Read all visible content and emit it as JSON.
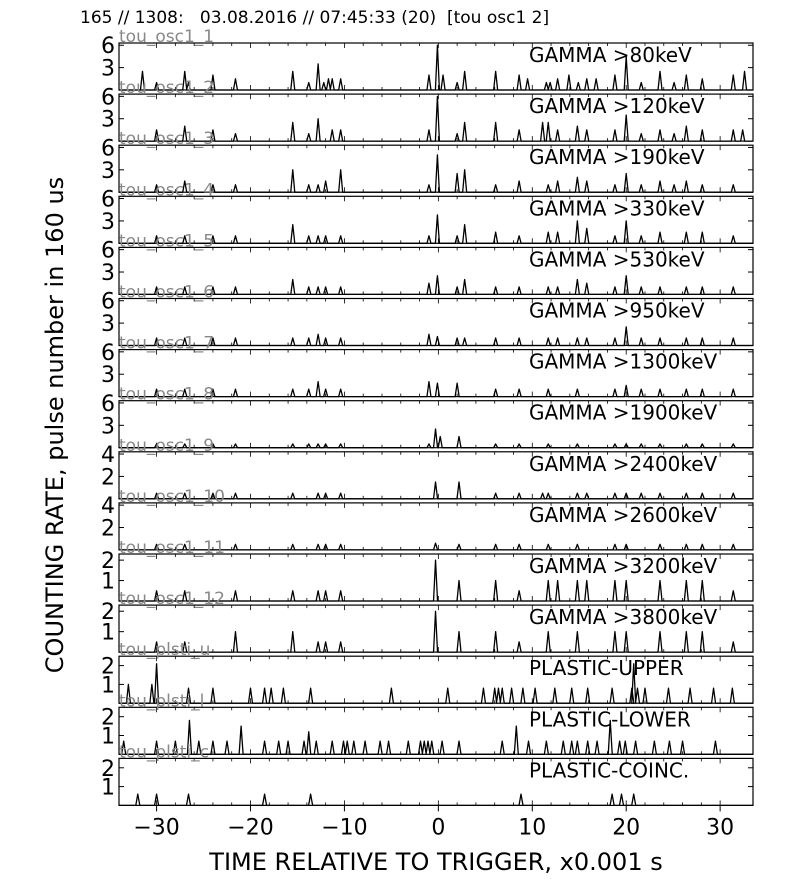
{
  "header": {
    "title": "165 // 1308:   03.08.2016 // 07:45:33 (20)  [tou osc1 2]"
  },
  "axes": {
    "ylabel": "COUNTING RATE,    pulse number in 160 us",
    "xlabel": "TIME RELATIVE TO TRIGGER,   x0.001 s",
    "xlim": [
      -34,
      33.5
    ],
    "xticks": [
      -30,
      -20,
      -10,
      0,
      10,
      20,
      30
    ]
  },
  "chart_data": [
    {
      "type": "line",
      "channel": "tou_osc1_1",
      "label": "GAMMA >80keV",
      "ylim": [
        0,
        6.3
      ],
      "yticks": [
        3,
        6
      ],
      "x": [
        -31.5,
        -30,
        -27,
        -26.6,
        -24,
        -21.6,
        -15.5,
        -13.8,
        -12.8,
        -12.2,
        -11.7,
        -11.3,
        -10.4,
        -1,
        -0.1,
        0.5,
        2,
        2.8,
        6.1,
        8.6,
        9.5,
        11.5,
        11.9,
        12.7,
        13.9,
        14.9,
        15.8,
        16.8,
        18.8,
        20,
        21.6,
        23.6,
        25.1,
        26.4,
        28.1,
        31.4,
        32.6
      ],
      "y": [
        2.5,
        1,
        2.5,
        1,
        2,
        1.5,
        2.5,
        1,
        3.5,
        1,
        1.5,
        1.5,
        1.5,
        2,
        6,
        2,
        1,
        2.5,
        2.5,
        2,
        1.5,
        1,
        1,
        1.5,
        2,
        1,
        1.5,
        1.5,
        2,
        4.5,
        1,
        2.5,
        1,
        2,
        1.5,
        2,
        2.5
      ]
    },
    {
      "type": "line",
      "channel": "tou_osc1_2",
      "label": "GAMMA >120keV",
      "ylim": [
        0,
        6.3
      ],
      "yticks": [
        3,
        6
      ],
      "x": [
        -30,
        -27,
        -24,
        -21.6,
        -15.5,
        -13.8,
        -12.8,
        -11.3,
        -10.4,
        -1,
        -0.1,
        2,
        2.8,
        6.1,
        8.6,
        11.1,
        11.7,
        12.7,
        14.8,
        15.8,
        18.8,
        20,
        21.6,
        23.6,
        25.1,
        26.4,
        28.1,
        31.4,
        32.4
      ],
      "y": [
        1.5,
        2,
        1.5,
        1,
        2.5,
        1,
        3,
        1.5,
        1.5,
        1.5,
        6,
        1,
        2.5,
        2.5,
        1.5,
        2.5,
        2.5,
        1.5,
        2,
        1.5,
        1.5,
        3.5,
        1,
        1.5,
        1,
        2,
        1.5,
        1.5,
        1.5
      ]
    },
    {
      "type": "line",
      "channel": "tou_osc1_3",
      "label": "GAMMA >190keV",
      "ylim": [
        0,
        6.3
      ],
      "yticks": [
        3,
        6
      ],
      "x": [
        -30,
        -27,
        -24,
        -21.6,
        -15.5,
        -13.8,
        -12.8,
        -12,
        -10.4,
        -1,
        -0.1,
        2,
        2.8,
        6.1,
        8.6,
        11.7,
        12.7,
        14.8,
        15.8,
        18.8,
        20,
        21.6,
        23.6,
        25.1,
        26.4,
        28.1,
        31.4
      ],
      "y": [
        1,
        1.5,
        1,
        1,
        3,
        1,
        1,
        1.5,
        3,
        1,
        5,
        2.5,
        3,
        1,
        1.5,
        1,
        1.5,
        2,
        1.5,
        1,
        2.5,
        1,
        1.5,
        1,
        1.5,
        1,
        1
      ]
    },
    {
      "type": "line",
      "channel": "tou_osc1_4",
      "label": "GAMMA >330keV",
      "ylim": [
        0,
        6.3
      ],
      "yticks": [
        3,
        6
      ],
      "x": [
        -30,
        -27,
        -24,
        -21.6,
        -15.5,
        -13.8,
        -12.8,
        -12,
        -10.4,
        -1,
        -0.1,
        2,
        2.8,
        6.1,
        8.6,
        11.7,
        12.7,
        14.8,
        15.8,
        18.8,
        20,
        21.6,
        23.6,
        26.4,
        28.1,
        31.4
      ],
      "y": [
        1,
        1,
        1,
        1,
        2.5,
        1,
        1,
        1,
        1,
        1,
        3.8,
        1,
        2.5,
        1.5,
        1,
        1.5,
        1.5,
        3,
        2,
        1,
        3,
        1,
        1.5,
        1.5,
        1.5,
        1
      ]
    },
    {
      "type": "line",
      "channel": "tou_osc1_5",
      "label": "GAMMA >530keV",
      "ylim": [
        0,
        6.3
      ],
      "yticks": [
        3,
        6
      ],
      "x": [
        -30,
        -27,
        -24,
        -21.6,
        -15.5,
        -13.8,
        -12.8,
        -12,
        -10.4,
        -1,
        -0.1,
        2,
        2.8,
        6.1,
        8.6,
        11.7,
        12.7,
        14.8,
        15.8,
        18.8,
        20,
        21.6,
        23.6,
        26.4,
        28.1,
        31.4
      ],
      "y": [
        1,
        1,
        1,
        1,
        2,
        1,
        1,
        1,
        1,
        1.5,
        2.5,
        1,
        2,
        1,
        1,
        1,
        1,
        2,
        1.5,
        1,
        2.5,
        1,
        1,
        1,
        1,
        1
      ]
    },
    {
      "type": "line",
      "channel": "tou_osc1_6",
      "label": "GAMMA >950keV",
      "ylim": [
        0,
        6.3
      ],
      "yticks": [
        3,
        6
      ],
      "x": [
        -30,
        -27,
        -24,
        -21.6,
        -15.5,
        -13.8,
        -12.8,
        -12,
        -10.4,
        -1,
        -0.1,
        2,
        2.8,
        6.1,
        8.6,
        11.7,
        12.7,
        14.8,
        15.8,
        18.8,
        20,
        21.6,
        23.6,
        26.4,
        28.1,
        31.4
      ],
      "y": [
        1,
        1,
        1,
        1,
        1,
        1,
        1.5,
        1,
        1,
        1.5,
        1.2,
        1,
        1,
        1,
        1,
        1,
        1,
        1,
        1,
        1,
        2.5,
        1,
        1,
        1,
        1,
        1
      ]
    },
    {
      "type": "line",
      "channel": "tou_osc1_7",
      "label": "GAMMA >1300keV",
      "ylim": [
        0,
        6.3
      ],
      "yticks": [
        3,
        6
      ],
      "x": [
        -30,
        -27,
        -24,
        -21.6,
        -15.5,
        -13.8,
        -12.8,
        -12,
        -10.4,
        -1,
        -0.1,
        2,
        6.1,
        8.6,
        11.7,
        14.8,
        18.8,
        20,
        21.6,
        23.6,
        26.4,
        28.1,
        31.4
      ],
      "y": [
        1,
        1,
        1,
        1,
        1,
        1,
        2,
        1,
        1,
        2,
        1.8,
        1.8,
        1,
        1,
        1,
        1,
        1,
        1.5,
        1,
        1,
        1,
        1,
        1
      ]
    },
    {
      "type": "line",
      "channel": "tou_osc1_8",
      "label": "GAMMA >1900keV",
      "ylim": [
        0,
        6.3
      ],
      "yticks": [
        3,
        6
      ],
      "x": [
        -30,
        -27,
        -24,
        -21.6,
        -15.5,
        -13.8,
        -12.8,
        -12,
        -10.4,
        -1,
        -0.3,
        0.2,
        2.2,
        6.1,
        8.6,
        11.7,
        14.8,
        18.8,
        20,
        21.6,
        23.6,
        26.4,
        28.1,
        31.4
      ],
      "y": [
        0.5,
        0.5,
        0.5,
        0.5,
        0.5,
        0.5,
        0.5,
        0.5,
        0.5,
        0.5,
        2.5,
        1.5,
        1.5,
        0.5,
        0.5,
        0.5,
        0.5,
        0.5,
        0.5,
        0.5,
        0.5,
        0.5,
        0.5,
        0.5
      ]
    },
    {
      "type": "line",
      "channel": "tou_osc1_9",
      "label": "GAMMA >2400keV",
      "ylim": [
        0,
        4.2
      ],
      "yticks": [
        2,
        4
      ],
      "x": [
        -30,
        -27,
        -24,
        -21.6,
        -15.5,
        -12.8,
        -12,
        -10.4,
        -0.3,
        2.2,
        6.1,
        8.6,
        11.1,
        11.7,
        14.8,
        15.8,
        18.8,
        20,
        21.6,
        23.6,
        26.4,
        28.1,
        31.4
      ],
      "y": [
        0.5,
        0.5,
        0.5,
        0.5,
        0.5,
        0.5,
        0.5,
        0.5,
        1.5,
        1.5,
        0.5,
        0.5,
        0.5,
        0.5,
        0.5,
        0.5,
        0.5,
        0.5,
        0.5,
        0.5,
        0.5,
        0.5,
        0.5
      ]
    },
    {
      "type": "line",
      "channel": "tou_osc1_10",
      "label": "GAMMA >2600keV",
      "ylim": [
        0,
        4.2
      ],
      "yticks": [
        2,
        4
      ],
      "x": [
        -30,
        -27,
        -21.6,
        -15.5,
        -12.8,
        -12,
        -10.4,
        -0.3,
        2.2,
        6.1,
        8.6,
        11.7,
        14.8,
        18.8,
        20,
        23.6,
        26.4,
        28.1,
        31.4
      ],
      "y": [
        0.5,
        0.5,
        0.5,
        0.5,
        0.5,
        0.5,
        0.5,
        0.6,
        0.5,
        0.5,
        0.5,
        0.5,
        0.5,
        0.5,
        0.5,
        0.5,
        0.5,
        0.5,
        0.5
      ]
    },
    {
      "type": "line",
      "channel": "tou_osc1_11",
      "label": "GAMMA >3200keV",
      "ylim": [
        0,
        2.3
      ],
      "yticks": [
        1,
        2
      ],
      "x": [
        -30,
        -27,
        -21.6,
        -15.5,
        -12.8,
        -12,
        -10.4,
        -0.3,
        2.2,
        6.1,
        8.6,
        11.7,
        12.7,
        14.8,
        15.8,
        18.8,
        20,
        23.6,
        26.4,
        28.1,
        31.4
      ],
      "y": [
        0.5,
        0.5,
        0.5,
        0.5,
        0.5,
        0.5,
        0.5,
        2,
        1,
        1,
        0.5,
        1,
        1,
        1,
        1,
        1,
        1,
        1,
        1,
        1,
        0.5
      ]
    },
    {
      "type": "line",
      "channel": "tou_osc1_12",
      "label": "GAMMA >3800keV",
      "ylim": [
        0,
        2.3
      ],
      "yticks": [
        1,
        2
      ],
      "x": [
        -30,
        -27,
        -21.6,
        -15.5,
        -12.8,
        -12,
        -10.4,
        -0.3,
        2.2,
        6.1,
        8.6,
        11.7,
        14.8,
        18.8,
        20,
        23.6,
        26.4,
        28.1,
        31.4
      ],
      "y": [
        0.5,
        0.5,
        1,
        1,
        0.5,
        0.5,
        0.5,
        2,
        1,
        1,
        0.5,
        1,
        1,
        1,
        1,
        1,
        1,
        1,
        0.5
      ]
    },
    {
      "type": "line",
      "channel": "tou_plsti_u",
      "label": "PLASTIC-UPPER",
      "ylim": [
        0,
        2.5
      ],
      "yticks": [
        1,
        2
      ],
      "x": [
        -33,
        -30.5,
        -30,
        -26.6,
        -24,
        -20,
        -18.5,
        -17.8,
        -16.5,
        -13.6,
        -5,
        1,
        4.8,
        6,
        6.4,
        6.8,
        7.8,
        9,
        10.3,
        12.4,
        14.2,
        15.9,
        18.5,
        20.6,
        20.8,
        21.2,
        22,
        24.5,
        26.8,
        29.3,
        31.3
      ],
      "y": [
        1,
        1,
        2.1,
        0.8,
        0.8,
        0.8,
        0.8,
        0.8,
        0.8,
        0.8,
        0.8,
        0.8,
        0.8,
        0.8,
        0.8,
        0.8,
        0.8,
        0.8,
        0.8,
        0.8,
        0.8,
        0.8,
        0.8,
        0.8,
        2.1,
        0.8,
        0.8,
        0.8,
        0.8,
        0.8,
        0.8
      ]
    },
    {
      "type": "line",
      "channel": "tou_plsti_l",
      "label": "PLASTIC-LOWER",
      "ylim": [
        0,
        2.5
      ],
      "yticks": [
        1,
        2
      ],
      "x": [
        -33.5,
        -30,
        -28,
        -26.5,
        -25.5,
        -24,
        -22.5,
        -21,
        -18.5,
        -17,
        -16,
        -14.3,
        -13.8,
        -13,
        -11.3,
        -10.1,
        -9.7,
        -9,
        -7.8,
        -6.2,
        -5.3,
        -3.2,
        -1.9,
        -1.5,
        -1.1,
        -0.7,
        0.4,
        2.2,
        6.8,
        8.3,
        9.6,
        11.5,
        13.3,
        14.2,
        14.8,
        15.9,
        16.9,
        18.3,
        19.3,
        19.9,
        21,
        23,
        24.6,
        26,
        29.5
      ],
      "y": [
        0.7,
        0.7,
        0.7,
        1.8,
        0.7,
        0.7,
        0.7,
        1.5,
        0.7,
        0.7,
        0.7,
        0.7,
        1.2,
        0.7,
        0.7,
        0.7,
        0.7,
        0.7,
        0.7,
        0.7,
        0.7,
        0.7,
        0.7,
        0.7,
        0.7,
        0.7,
        0.7,
        0.7,
        0.7,
        1.5,
        0.7,
        0.7,
        0.7,
        0.7,
        0.7,
        0.7,
        0.7,
        1.8,
        0.7,
        0.7,
        0.7,
        0.7,
        0.7,
        0.7,
        0.7
      ]
    },
    {
      "type": "line",
      "channel": "tou_plsti_c",
      "label": "PLASTIC-COINC.",
      "ylim": [
        0,
        2.5
      ],
      "yticks": [
        1,
        2
      ],
      "x": [
        -32,
        -30,
        -26.6,
        -18.5,
        -13.6,
        8.8,
        18.5,
        19.5,
        20.8
      ],
      "y": [
        0.6,
        0.6,
        0.6,
        0.6,
        0.6,
        0.6,
        0.6,
        0.6,
        0.6
      ]
    }
  ]
}
